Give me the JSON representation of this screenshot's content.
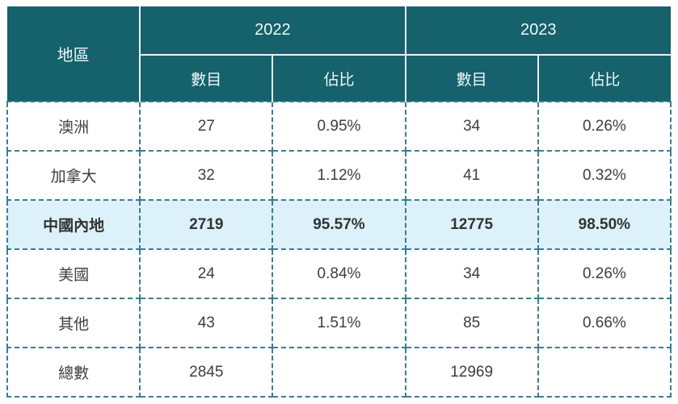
{
  "colors": {
    "header_background": "#15616c",
    "header_text": "#f0f9fa",
    "header_divider": "#e9f3f4",
    "dashed_border": "#3a7e8f",
    "highlight_row_background": "#ddf1fb",
    "data_text": "#3e3e3e",
    "page_background": "#ffffff"
  },
  "table": {
    "region_header": "地區",
    "year_groups": [
      {
        "year": "2022",
        "sub_headers": [
          "數目",
          "佔比"
        ]
      },
      {
        "year": "2023",
        "sub_headers": [
          "數目",
          "佔比"
        ]
      }
    ],
    "rows": [
      {
        "region": "澳洲",
        "values": [
          "27",
          "0.95%",
          "34",
          "0.26%"
        ],
        "highlight": false
      },
      {
        "region": "加拿大",
        "values": [
          "32",
          "1.12%",
          "41",
          "0.32%"
        ],
        "highlight": false
      },
      {
        "region": "中國內地",
        "values": [
          "2719",
          "95.57%",
          "12775",
          "98.50%"
        ],
        "highlight": true
      },
      {
        "region": "美國",
        "values": [
          "24",
          "0.84%",
          "34",
          "0.26%"
        ],
        "highlight": false
      },
      {
        "region": "其他",
        "values": [
          "43",
          "1.51%",
          "85",
          "0.66%"
        ],
        "highlight": false
      },
      {
        "region": "總數",
        "values": [
          "2845",
          "",
          "12969",
          ""
        ],
        "highlight": false
      }
    ]
  },
  "chart_data": {
    "type": "table",
    "title": "",
    "columns": [
      "地區",
      "2022 數目",
      "2022 佔比",
      "2023 數目",
      "2023 佔比"
    ],
    "rows": [
      [
        "澳洲",
        27,
        "0.95%",
        34,
        "0.26%"
      ],
      [
        "加拿大",
        32,
        "1.12%",
        41,
        "0.32%"
      ],
      [
        "中國內地",
        2719,
        "95.57%",
        12775,
        "98.50%"
      ],
      [
        "美國",
        24,
        "0.84%",
        34,
        "0.26%"
      ],
      [
        "其他",
        43,
        "1.51%",
        85,
        "0.66%"
      ],
      [
        "總數",
        2845,
        "",
        12969,
        ""
      ]
    ],
    "notes": "Row 中國內地 is highlighted (light blue background, bold). 總數 row has empty percentage cells."
  }
}
